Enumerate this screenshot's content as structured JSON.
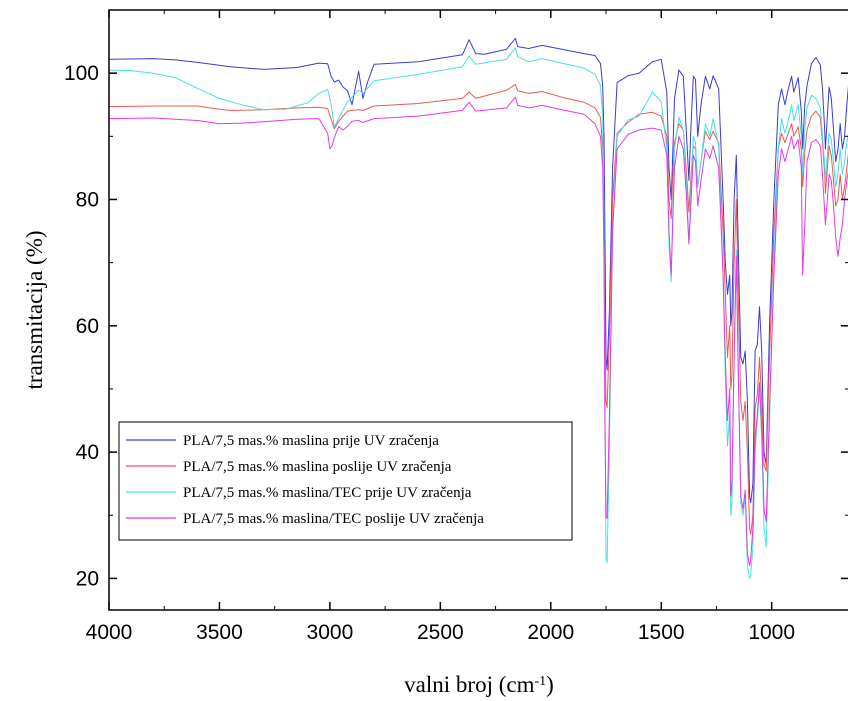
{
  "chart_data": {
    "type": "line",
    "title": "",
    "xlabel": "valni broj (cm",
    "xlabel_sup": "-1",
    "xlabel_tail": ")",
    "ylabel": "transmitacija (%)",
    "xlim": [
      4000,
      650
    ],
    "ylim": [
      15,
      110
    ],
    "x_reversed": true,
    "x_ticks": [
      4000,
      3500,
      3000,
      2500,
      2000,
      1500,
      1000
    ],
    "y_ticks": [
      20,
      40,
      60,
      80,
      100
    ],
    "x_tick_labels": [
      "4000",
      "3500",
      "3000",
      "2500",
      "2000",
      "1500",
      "1000"
    ],
    "y_tick_labels": [
      "20",
      "40",
      "60",
      "80",
      "100"
    ],
    "grid": false,
    "legend_position": "bottom-left",
    "series": [
      {
        "name": "PLA/7,5 mas.% maslina prije UV zračenja",
        "color": "#3a3ad6",
        "x": [
          4000,
          3800,
          3700,
          3600,
          3450,
          3300,
          3150,
          3050,
          3010,
          2995,
          2980,
          2960,
          2940,
          2920,
          2900,
          2870,
          2850,
          2830,
          2800,
          2600,
          2400,
          2370,
          2340,
          2300,
          2200,
          2160,
          2150,
          2100,
          2040,
          1950,
          1850,
          1800,
          1775,
          1765,
          1759,
          1755,
          1750,
          1745,
          1735,
          1720,
          1700,
          1650,
          1600,
          1540,
          1500,
          1475,
          1465,
          1455,
          1450,
          1440,
          1420,
          1400,
          1385,
          1375,
          1365,
          1355,
          1345,
          1335,
          1320,
          1300,
          1280,
          1265,
          1240,
          1220,
          1210,
          1200,
          1190,
          1185,
          1180,
          1170,
          1160,
          1150,
          1140,
          1130,
          1120,
          1110,
          1100,
          1095,
          1085,
          1075,
          1065,
          1055,
          1045,
          1035,
          1025,
          1010,
          990,
          970,
          955,
          940,
          925,
          910,
          900,
          880,
          866,
          860,
          850,
          840,
          820,
          800,
          780,
          770,
          760,
          757,
          750,
          740,
          730,
          720,
          710,
          700,
          690,
          680,
          670,
          660,
          650
        ],
        "y": [
          102.2,
          102.3,
          102.1,
          101.7,
          101,
          100.6,
          100.9,
          101.6,
          101.5,
          99.5,
          98.6,
          98.9,
          97.8,
          97.2,
          95,
          100.3,
          96,
          98.5,
          101.4,
          101.8,
          102.9,
          105.3,
          103.1,
          103,
          103.8,
          105.5,
          104.2,
          103.9,
          104.4,
          103.8,
          103.1,
          102.8,
          101.5,
          98,
          90,
          75,
          55,
          53,
          62,
          85,
          98.5,
          99.6,
          100,
          101.8,
          102.2,
          97,
          85,
          80,
          85,
          96,
          100.5,
          99.5,
          90,
          83,
          92,
          99.5,
          99,
          90,
          95,
          99.5,
          97.5,
          99.6,
          97.5,
          80,
          70,
          65,
          68,
          60,
          62,
          80,
          87,
          70,
          55,
          54,
          56,
          48,
          33,
          32,
          35,
          56,
          57,
          63,
          56,
          40,
          38,
          60,
          80,
          95,
          97.5,
          95,
          97.5,
          99.5,
          97,
          99.3,
          94,
          88,
          95,
          98,
          101.5,
          102.5,
          101.3,
          97.5,
          91,
          88,
          92,
          97.8,
          96,
          91,
          86,
          88,
          92,
          88,
          90,
          95,
          99
        ]
      },
      {
        "name": "PLA/7,5 mas.% maslina poslije UV zračenja",
        "color": "#e85a4f",
        "x": [
          4000,
          3800,
          3600,
          3500,
          3450,
          3300,
          3150,
          3050,
          3010,
          2995,
          2980,
          2960,
          2940,
          2920,
          2900,
          2870,
          2850,
          2800,
          2600,
          2400,
          2370,
          2340,
          2200,
          2160,
          2150,
          2100,
          2040,
          1950,
          1850,
          1800,
          1775,
          1765,
          1759,
          1755,
          1750,
          1745,
          1735,
          1720,
          1700,
          1650,
          1600,
          1540,
          1500,
          1475,
          1465,
          1455,
          1450,
          1440,
          1420,
          1400,
          1385,
          1375,
          1365,
          1355,
          1345,
          1335,
          1320,
          1300,
          1280,
          1265,
          1240,
          1220,
          1210,
          1200,
          1190,
          1185,
          1180,
          1170,
          1160,
          1150,
          1140,
          1130,
          1120,
          1110,
          1100,
          1095,
          1085,
          1075,
          1065,
          1055,
          1045,
          1035,
          1025,
          1010,
          990,
          970,
          955,
          940,
          925,
          910,
          900,
          880,
          866,
          860,
          850,
          840,
          820,
          800,
          780,
          770,
          760,
          757,
          750,
          740,
          730,
          720,
          710,
          700,
          690,
          680,
          670,
          660,
          650
        ],
        "y": [
          94.7,
          94.8,
          94.8,
          94.3,
          94.1,
          94.2,
          94.5,
          94.6,
          94.4,
          92.8,
          91.2,
          92.4,
          93.2,
          94,
          94.1,
          94.2,
          94.1,
          94.8,
          95.2,
          96,
          97,
          96,
          97.3,
          98.2,
          97.2,
          96.8,
          97.1,
          96.2,
          95.4,
          94.5,
          93,
          88,
          75,
          60,
          48,
          47,
          58,
          80,
          90.5,
          92.2,
          93.5,
          93.8,
          93.2,
          90,
          80,
          77,
          82,
          89,
          92,
          91,
          84,
          78,
          84,
          88.5,
          88,
          82,
          86,
          90.8,
          89.5,
          90.8,
          89,
          75,
          65,
          55,
          60,
          50,
          52,
          70,
          80,
          62,
          48,
          45,
          48,
          40,
          28,
          27,
          30,
          47,
          49,
          55,
          48,
          38,
          37,
          55,
          75,
          88,
          90.5,
          89,
          90.5,
          92,
          90,
          91.5,
          88,
          82,
          87.5,
          91,
          93.2,
          94,
          93,
          89,
          84,
          81,
          84,
          88.5,
          87,
          83,
          79,
          80,
          84,
          80,
          82,
          85,
          88
        ]
      },
      {
        "name": "PLA/7,5 mas.% maslina/TEC prije UV zračenja",
        "color": "#47e0e6",
        "x": [
          4000,
          3900,
          3800,
          3700,
          3600,
          3500,
          3400,
          3300,
          3200,
          3100,
          3050,
          3010,
          2995,
          2980,
          2960,
          2940,
          2920,
          2900,
          2870,
          2850,
          2800,
          2600,
          2400,
          2370,
          2340,
          2200,
          2160,
          2150,
          2100,
          2040,
          1950,
          1850,
          1800,
          1775,
          1765,
          1759,
          1755,
          1750,
          1745,
          1735,
          1720,
          1700,
          1650,
          1600,
          1540,
          1500,
          1475,
          1465,
          1455,
          1450,
          1440,
          1420,
          1400,
          1385,
          1375,
          1365,
          1355,
          1345,
          1335,
          1320,
          1300,
          1280,
          1265,
          1240,
          1220,
          1210,
          1200,
          1190,
          1185,
          1180,
          1170,
          1160,
          1150,
          1140,
          1130,
          1120,
          1110,
          1100,
          1095,
          1085,
          1075,
          1065,
          1055,
          1045,
          1035,
          1025,
          1010,
          990,
          970,
          955,
          940,
          925,
          910,
          900,
          880,
          866,
          860,
          850,
          840,
          820,
          800,
          780,
          770,
          760,
          757,
          750,
          740,
          730,
          720,
          710,
          700,
          690,
          680,
          670,
          660,
          650
        ],
        "y": [
          100.5,
          100.4,
          100,
          99.3,
          97.6,
          96,
          95,
          94.2,
          94.3,
          95.3,
          96.8,
          97.4,
          95.2,
          91.5,
          92.8,
          94.2,
          95.5,
          96.2,
          97.3,
          96.8,
          98.8,
          99.8,
          101,
          102.7,
          101.4,
          102.2,
          104,
          102.6,
          101.8,
          102.3,
          101.6,
          100.8,
          99.8,
          98,
          93,
          75,
          50,
          23,
          22.5,
          40,
          75,
          90,
          92.6,
          93.2,
          97,
          95.5,
          88,
          73,
          67,
          75,
          88,
          93,
          91,
          82,
          73,
          82,
          90,
          89,
          82,
          86,
          92,
          90,
          92.8,
          88.5,
          68,
          52,
          41,
          46,
          30,
          32,
          55,
          72,
          50,
          32,
          30,
          33,
          22,
          20,
          20.5,
          25,
          40,
          45,
          50,
          42,
          28,
          25,
          45,
          70,
          88,
          92.8,
          90.5,
          92.5,
          95,
          92.5,
          95,
          90,
          84,
          91,
          94.5,
          96.5,
          96,
          94.5,
          90,
          85.5,
          83,
          86,
          90.5,
          89.5,
          86,
          82,
          84,
          88,
          84,
          86,
          89,
          91
        ]
      },
      {
        "name": "PLA/7,5 mas.% maslina/TEC poslije UV zračenja",
        "color": "#e33ae3",
        "x": [
          4000,
          3800,
          3600,
          3500,
          3400,
          3300,
          3150,
          3050,
          3010,
          3000,
          2990,
          2980,
          2960,
          2940,
          2920,
          2900,
          2870,
          2850,
          2800,
          2600,
          2400,
          2370,
          2340,
          2200,
          2160,
          2150,
          2100,
          2040,
          1950,
          1850,
          1800,
          1775,
          1765,
          1759,
          1755,
          1750,
          1745,
          1735,
          1720,
          1700,
          1650,
          1600,
          1540,
          1500,
          1475,
          1465,
          1455,
          1450,
          1440,
          1420,
          1400,
          1385,
          1375,
          1365,
          1355,
          1345,
          1335,
          1320,
          1300,
          1280,
          1265,
          1240,
          1220,
          1210,
          1200,
          1190,
          1185,
          1180,
          1170,
          1160,
          1150,
          1140,
          1130,
          1120,
          1110,
          1100,
          1095,
          1085,
          1075,
          1065,
          1055,
          1045,
          1035,
          1025,
          1010,
          990,
          970,
          955,
          940,
          925,
          910,
          900,
          880,
          866,
          860,
          850,
          840,
          820,
          800,
          780,
          770,
          760,
          757,
          750,
          740,
          730,
          720,
          710,
          700,
          690,
          680,
          670,
          660,
          650
        ],
        "y": [
          92.8,
          92.9,
          92.5,
          92,
          92.1,
          92.3,
          92.7,
          92.8,
          90.5,
          88,
          88.5,
          89.8,
          91.5,
          91,
          91.6,
          92.4,
          92.5,
          92.2,
          92.8,
          93.2,
          94.1,
          95.4,
          94,
          94.5,
          96.2,
          94.9,
          94.5,
          94.9,
          94.2,
          93.5,
          92,
          90,
          85,
          70,
          45,
          30,
          29.5,
          45,
          75,
          88,
          90.3,
          91,
          91.3,
          91,
          87,
          75,
          68,
          74,
          85,
          90,
          88,
          80,
          73,
          80,
          87,
          86,
          79,
          83,
          88,
          86.5,
          88.5,
          85,
          68,
          55,
          45,
          50,
          33,
          35,
          55,
          71,
          50,
          33,
          31,
          34,
          24,
          22,
          23,
          28,
          42,
          46,
          51,
          44,
          31,
          29,
          47,
          68,
          84,
          88,
          86,
          88,
          90,
          88,
          89.5,
          85,
          68,
          76,
          86,
          89,
          89.5,
          88.5,
          84,
          78,
          76,
          79,
          84,
          83,
          79,
          74,
          71,
          74,
          76,
          80,
          83,
          85
        ]
      }
    ]
  }
}
